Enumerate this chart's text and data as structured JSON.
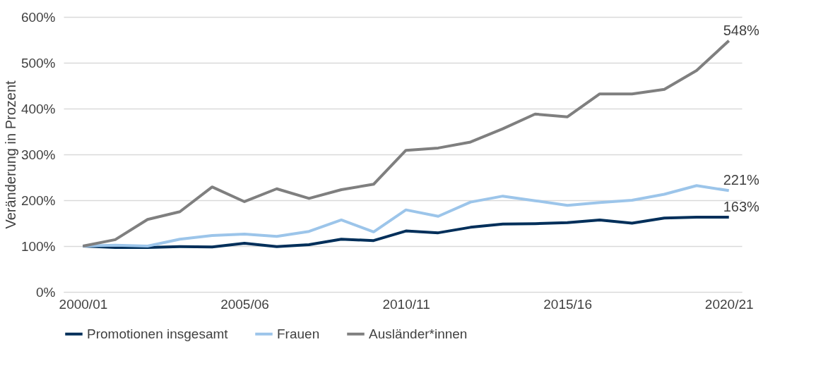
{
  "chart_data": {
    "type": "line",
    "ylabel": "Veränderung in Prozent",
    "categories": [
      "2000/01",
      null,
      null,
      null,
      null,
      "2005/06",
      null,
      null,
      null,
      null,
      "2010/11",
      null,
      null,
      null,
      null,
      "2015/16",
      null,
      null,
      null,
      null,
      "2020/21"
    ],
    "series": [
      {
        "name": "Promotionen insgesamt",
        "color": "#002f5a",
        "values": [
          100,
          97,
          97,
          99,
          98,
          106,
          99,
          103,
          115,
          112,
          133,
          129,
          141,
          148,
          149,
          151,
          157,
          150,
          161,
          163,
          163
        ],
        "value_labels": [
          null,
          null,
          null,
          null,
          null,
          null,
          null,
          null,
          null,
          null,
          null,
          null,
          null,
          null,
          null,
          null,
          null,
          null,
          null,
          null,
          "163%"
        ]
      },
      {
        "name": "Frauen",
        "color": "#9cc5ea",
        "values": [
          100,
          102,
          100,
          115,
          123,
          126,
          121,
          132,
          157,
          131,
          179,
          165,
          196,
          209,
          199,
          189,
          195,
          200,
          213,
          232,
          221
        ],
        "value_labels": [
          null,
          null,
          null,
          null,
          null,
          null,
          null,
          null,
          null,
          null,
          null,
          null,
          null,
          null,
          null,
          null,
          null,
          null,
          null,
          null,
          "221%"
        ]
      },
      {
        "name": "Ausländer*innen",
        "color": "#7f7f7f",
        "values": [
          100,
          114,
          158,
          175,
          229,
          197,
          225,
          204,
          223,
          235,
          309,
          314,
          327,
          356,
          388,
          382,
          432,
          432,
          442,
          483,
          548
        ],
        "value_labels": [
          null,
          null,
          null,
          null,
          null,
          null,
          null,
          null,
          null,
          null,
          null,
          null,
          null,
          null,
          null,
          null,
          null,
          null,
          null,
          null,
          "548%"
        ]
      }
    ],
    "ylim": [
      0,
      600
    ],
    "yticks": [
      {
        "value": 0,
        "label": "0%"
      },
      {
        "value": 100,
        "label": "100%"
      },
      {
        "value": 200,
        "label": "200%"
      },
      {
        "value": 300,
        "label": "300%"
      },
      {
        "value": 400,
        "label": "400%"
      },
      {
        "value": 500,
        "label": "500%"
      },
      {
        "value": 600,
        "label": "600%"
      }
    ],
    "grid": "y",
    "legend": "bottom",
    "marker": "none",
    "line_style": "solid"
  }
}
